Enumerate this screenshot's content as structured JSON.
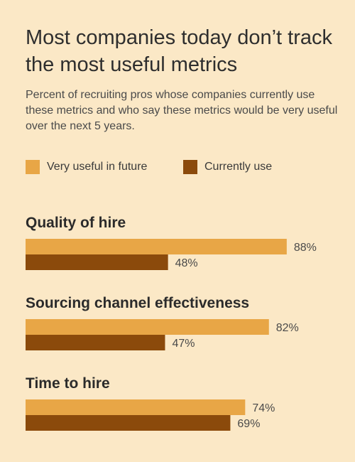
{
  "chart_data": {
    "type": "bar",
    "orientation": "horizontal",
    "title": "Most companies today don’t track the most useful metrics",
    "subtitle": "Percent of recruiting pros whose companies currently use these metrics and who say these metrics would be very useful over the next 5 years.",
    "categories": [
      "Quality of hire",
      "Sourcing channel effectiveness",
      "Time to hire"
    ],
    "series": [
      {
        "name": "Very useful in future",
        "values": [
          88,
          82,
          74
        ],
        "labels": [
          "88%",
          "82%",
          "74%"
        ],
        "color": "#e8a646"
      },
      {
        "name": "Currently use",
        "values": [
          48,
          47,
          69
        ],
        "labels": [
          "48%",
          "47%",
          "69%"
        ],
        "color": "#8b4a0b"
      }
    ],
    "xlim": [
      0,
      100
    ],
    "grid": false,
    "legend_position": "top-left"
  }
}
